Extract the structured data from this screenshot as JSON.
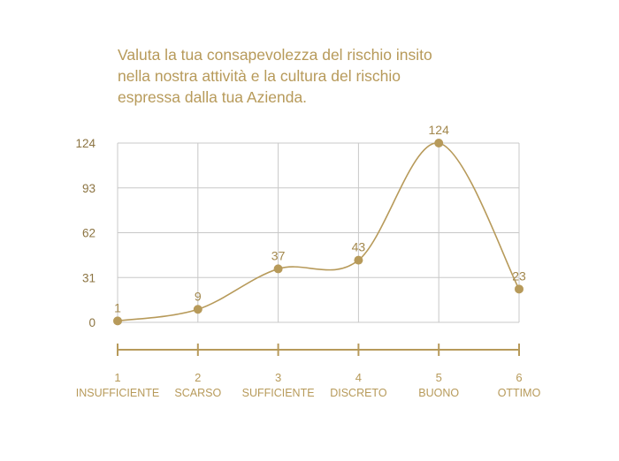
{
  "chart_data": {
    "type": "line",
    "title_lines": [
      "Valuta la tua consapevolezza del rischio insito",
      "nella nostra attività e la cultura del rischio",
      "espressa dalla tua Azienda."
    ],
    "categories": [
      "1",
      "2",
      "3",
      "4",
      "5",
      "6"
    ],
    "category_labels": [
      "INSUFFICIENTE",
      "SCARSO",
      "SUFFICIENTE",
      "DISCRETO",
      "BUONO",
      "OTTIMO"
    ],
    "values": [
      1,
      9,
      37,
      43,
      124,
      23
    ],
    "yticks": [
      0,
      31,
      62,
      93,
      124
    ],
    "ylim": [
      0,
      124
    ],
    "grid": true,
    "line_style": "smooth",
    "color": "#b79a5a",
    "grid_color": "#c8c8c8"
  }
}
